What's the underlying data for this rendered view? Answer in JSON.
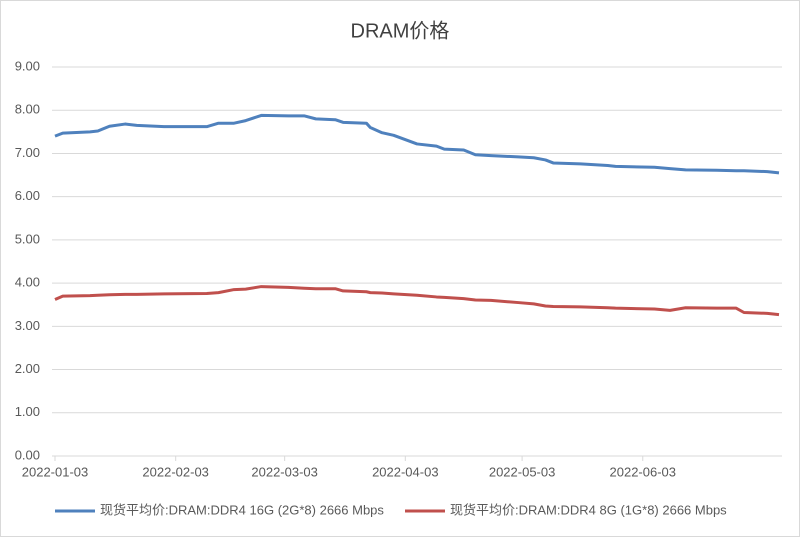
{
  "chart_data": {
    "type": "line",
    "title": "DRAM价格",
    "x": [
      "2022-01-03",
      "2022-01-05",
      "2022-01-12",
      "2022-01-14",
      "2022-01-17",
      "2022-01-21",
      "2022-01-24",
      "2022-01-31",
      "2022-02-11",
      "2022-02-14",
      "2022-02-18",
      "2022-02-21",
      "2022-02-25",
      "2022-03-04",
      "2022-03-08",
      "2022-03-11",
      "2022-03-16",
      "2022-03-18",
      "2022-03-24",
      "2022-03-25",
      "2022-03-28",
      "2022-03-31",
      "2022-04-06",
      "2022-04-11",
      "2022-04-13",
      "2022-04-18",
      "2022-04-21",
      "2022-04-25",
      "2022-05-02",
      "2022-05-06",
      "2022-05-09",
      "2022-05-11",
      "2022-05-18",
      "2022-05-25",
      "2022-05-27",
      "2022-06-06",
      "2022-06-10",
      "2022-06-14",
      "2022-06-22",
      "2022-06-27",
      "2022-06-29",
      "2022-07-05",
      "2022-07-08"
    ],
    "series": [
      {
        "name": "现货平均价:DRAM:DDR4 16G (2G*8) 2666 Mbps",
        "color": "#4f81bd",
        "values": [
          7.4,
          7.47,
          7.5,
          7.52,
          7.63,
          7.68,
          7.65,
          7.62,
          7.62,
          7.7,
          7.7,
          7.76,
          7.88,
          7.87,
          7.87,
          7.8,
          7.78,
          7.72,
          7.7,
          7.6,
          7.48,
          7.42,
          7.22,
          7.17,
          7.1,
          7.08,
          6.97,
          6.95,
          6.92,
          6.9,
          6.85,
          6.78,
          6.76,
          6.72,
          6.7,
          6.68,
          6.65,
          6.62,
          6.61,
          6.6,
          6.6,
          6.58,
          6.55
        ]
      },
      {
        "name": "现货平均价:DRAM:DDR4 8G (1G*8) 2666 Mbps",
        "color": "#c0504d",
        "values": [
          3.62,
          3.7,
          3.71,
          3.72,
          3.73,
          3.74,
          3.74,
          3.75,
          3.76,
          3.78,
          3.85,
          3.86,
          3.92,
          3.9,
          3.88,
          3.87,
          3.87,
          3.82,
          3.8,
          3.78,
          3.77,
          3.75,
          3.72,
          3.68,
          3.67,
          3.64,
          3.61,
          3.6,
          3.55,
          3.52,
          3.47,
          3.46,
          3.45,
          3.43,
          3.42,
          3.4,
          3.37,
          3.43,
          3.42,
          3.42,
          3.32,
          3.3,
          3.27
        ]
      }
    ],
    "xlim": [
      "2022-01-03",
      "2022-07-08"
    ],
    "xticks": [
      "2022-01-03",
      "2022-02-03",
      "2022-03-03",
      "2022-04-03",
      "2022-05-03",
      "2022-06-03"
    ],
    "ylim": [
      0,
      9
    ],
    "yticks": [
      {
        "value": 0,
        "label": "0.00"
      },
      {
        "value": 1,
        "label": "1.00"
      },
      {
        "value": 2,
        "label": "2.00"
      },
      {
        "value": 3,
        "label": "3.00"
      },
      {
        "value": 4,
        "label": "4.00"
      },
      {
        "value": 5,
        "label": "5.00"
      },
      {
        "value": 6,
        "label": "6.00"
      },
      {
        "value": 7,
        "label": "7.00"
      },
      {
        "value": 8,
        "label": "8.00"
      },
      {
        "value": 9,
        "label": "9.00"
      }
    ],
    "grid": true,
    "legend": "bottom"
  }
}
